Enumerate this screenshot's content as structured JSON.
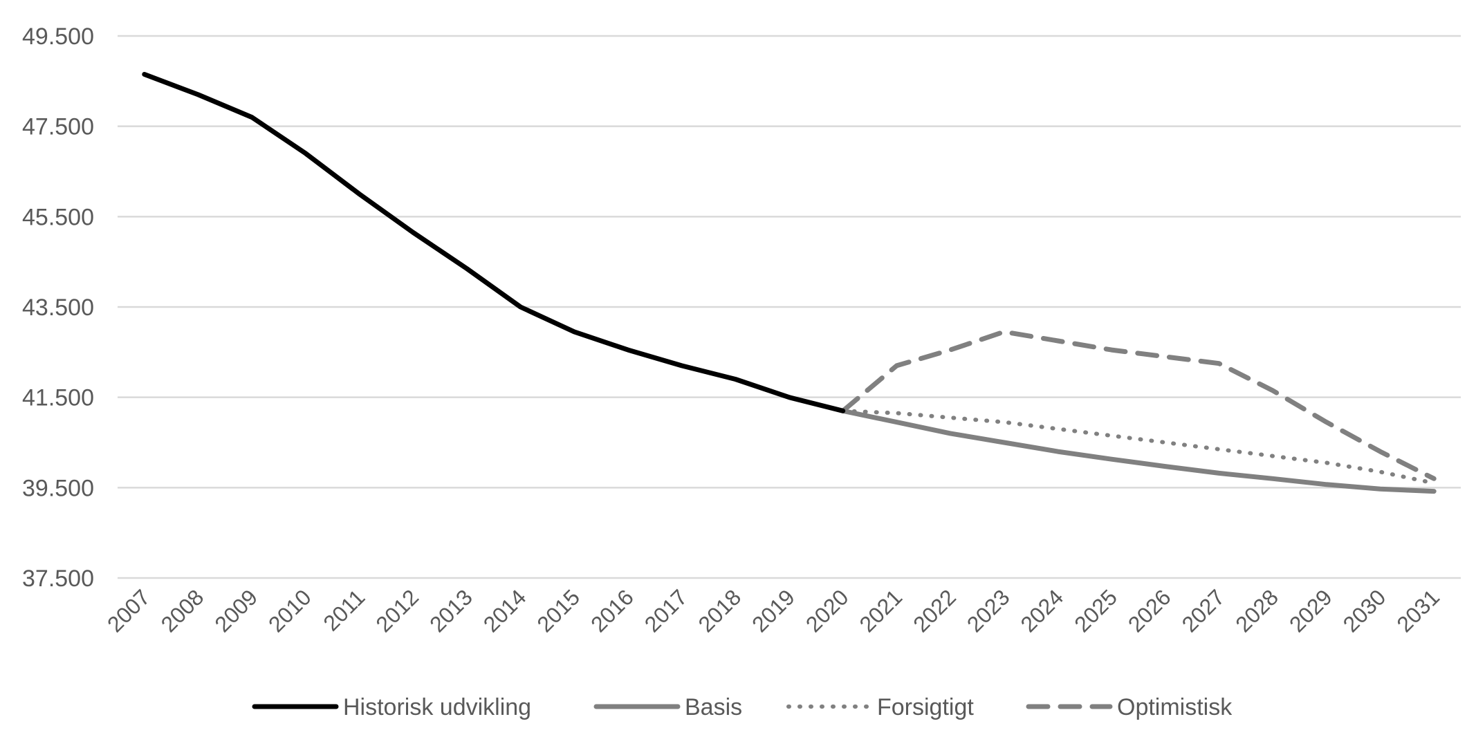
{
  "chart_data": {
    "type": "line",
    "title": "",
    "xlabel": "",
    "ylabel": "",
    "ylim": [
      37500,
      49500
    ],
    "yticks": [
      37500,
      39500,
      41500,
      43500,
      45500,
      47500,
      49500
    ],
    "ytick_labels": [
      "37.500",
      "39.500",
      "41.500",
      "43.500",
      "45.500",
      "47.500",
      "49.500"
    ],
    "grid": "horizontal",
    "legend_position": "bottom",
    "categories": [
      "2007",
      "2008",
      "2009",
      "2010",
      "2011",
      "2012",
      "2013",
      "2014",
      "2015",
      "2016",
      "2017",
      "2018",
      "2019",
      "2020",
      "2021",
      "2022",
      "2023",
      "2024",
      "2025",
      "2026",
      "2027",
      "2028",
      "2029",
      "2030",
      "2031"
    ],
    "series": [
      {
        "name": "Historisk udvikling",
        "style": "solid",
        "color": "#000000",
        "x": [
          "2007",
          "2008",
          "2009",
          "2010",
          "2011",
          "2012",
          "2013",
          "2014",
          "2015",
          "2016",
          "2017",
          "2018",
          "2019",
          "2020"
        ],
        "values": [
          48650,
          48200,
          47700,
          46900,
          46000,
          45150,
          44350,
          43500,
          42950,
          42550,
          42200,
          41900,
          41500,
          41200
        ]
      },
      {
        "name": "Basis",
        "style": "solid",
        "color": "#808080",
        "x": [
          "2020",
          "2021",
          "2022",
          "2023",
          "2024",
          "2025",
          "2026",
          "2027",
          "2028",
          "2029",
          "2030",
          "2031"
        ],
        "values": [
          41200,
          40950,
          40700,
          40500,
          40300,
          40130,
          39970,
          39820,
          39700,
          39570,
          39470,
          39420
        ]
      },
      {
        "name": "Forsigtigt",
        "style": "dotted",
        "color": "#808080",
        "x": [
          "2020",
          "2021",
          "2022",
          "2023",
          "2024",
          "2025",
          "2026",
          "2027",
          "2028",
          "2029",
          "2030",
          "2031"
        ],
        "values": [
          41200,
          41150,
          41050,
          40950,
          40800,
          40650,
          40500,
          40350,
          40200,
          40050,
          39850,
          39600
        ]
      },
      {
        "name": "Optimistisk",
        "style": "dashed",
        "color": "#808080",
        "x": [
          "2020",
          "2021",
          "2022",
          "2023",
          "2024",
          "2025",
          "2026",
          "2027",
          "2028",
          "2029",
          "2030",
          "2031"
        ],
        "values": [
          41200,
          42200,
          42550,
          42950,
          42750,
          42550,
          42400,
          42250,
          41650,
          40950,
          40300,
          39700
        ]
      }
    ]
  }
}
